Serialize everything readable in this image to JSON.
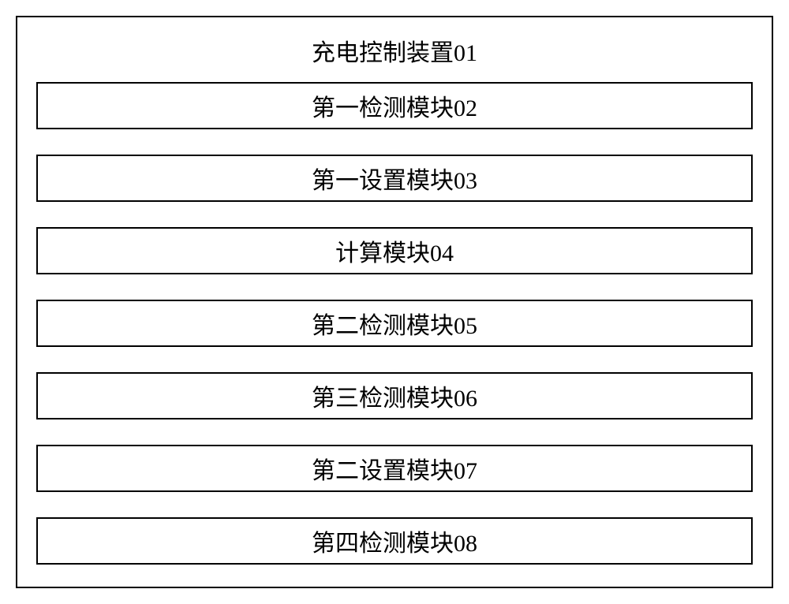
{
  "diagram": {
    "type": "block-diagram",
    "outer_border_color": "#000000",
    "outer_border_width": 2,
    "background_color": "#ffffff",
    "module_border_color": "#000000",
    "module_border_width": 2,
    "title_fontsize": 30,
    "module_fontsize": 30,
    "text_color": "#000000",
    "font_family": "SimSun",
    "gap_between_modules": 32,
    "title": "充电控制装置01",
    "modules": [
      {
        "label": "第一检测模块02"
      },
      {
        "label": "第一设置模块03"
      },
      {
        "label": "计算模块04"
      },
      {
        "label": "第二检测模块05"
      },
      {
        "label": "第三检测模块06"
      },
      {
        "label": "第二设置模块07"
      },
      {
        "label": "第四检测模块08"
      }
    ]
  }
}
